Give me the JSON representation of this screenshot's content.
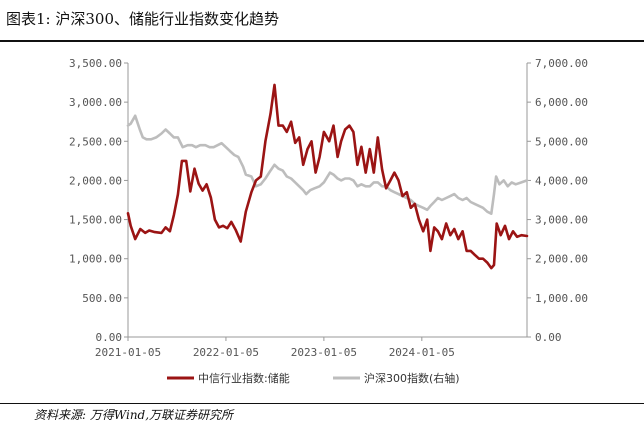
{
  "header": {
    "title": "图表1:  沪深300、储能行业指数变化趋势"
  },
  "footer": {
    "source": "资料来源:  万得Wind,万联证券研究所"
  },
  "colors": {
    "series_primary": "#9b1414",
    "series_secondary": "#bdbdbd",
    "axis": "#999999"
  },
  "chart_data": {
    "type": "line",
    "title": "",
    "x_tick_labels": [
      "2021-01-05",
      "2022-01-05",
      "2023-01-05",
      "2024-01-05"
    ],
    "x_ticks": [
      "2021-01-05",
      "2022-01-05",
      "2023-01-05",
      "2024-01-05"
    ],
    "xlim": [
      "2021-01-05",
      "2025-01-31"
    ],
    "y_left": {
      "lim": [
        0,
        3500
      ],
      "tick_labels": [
        "0.00",
        "500.00",
        "1,000.00",
        "1,500.00",
        "2,000.00",
        "2,500.00",
        "3,000.00",
        "3,500.00"
      ],
      "ticks": [
        0,
        500,
        1000,
        1500,
        2000,
        2500,
        3000,
        3500
      ]
    },
    "y_right": {
      "lim": [
        0,
        7000
      ],
      "tick_labels": [
        "0.00",
        "1,000.00",
        "2,000.00",
        "3,000.00",
        "4,000.00",
        "5,000.00",
        "6,000.00",
        "7,000.00"
      ],
      "ticks": [
        0,
        1000,
        2000,
        3000,
        4000,
        5000,
        6000,
        7000
      ]
    },
    "grid": false,
    "legend_position": "bottom",
    "series": [
      {
        "name": "中信行业指数:储能",
        "axis": "left",
        "x": [
          "2021-01-05",
          "2021-01-15",
          "2021-02-01",
          "2021-02-20",
          "2021-03-10",
          "2021-03-25",
          "2021-04-15",
          "2021-05-10",
          "2021-05-25",
          "2021-06-10",
          "2021-06-25",
          "2021-07-10",
          "2021-07-25",
          "2021-08-10",
          "2021-08-25",
          "2021-09-10",
          "2021-09-25",
          "2021-10-10",
          "2021-10-25",
          "2021-11-10",
          "2021-11-25",
          "2021-12-10",
          "2021-12-25",
          "2022-01-10",
          "2022-01-25",
          "2022-02-10",
          "2022-03-01",
          "2022-03-20",
          "2022-04-10",
          "2022-04-27",
          "2022-05-15",
          "2022-06-01",
          "2022-06-20",
          "2022-07-05",
          "2022-07-20",
          "2022-08-05",
          "2022-08-20",
          "2022-09-05",
          "2022-09-20",
          "2022-10-05",
          "2022-10-20",
          "2022-11-05",
          "2022-11-20",
          "2022-12-05",
          "2022-12-20",
          "2023-01-05",
          "2023-01-25",
          "2023-02-10",
          "2023-02-25",
          "2023-03-10",
          "2023-03-25",
          "2023-04-10",
          "2023-04-25",
          "2023-05-10",
          "2023-05-25",
          "2023-06-10",
          "2023-06-25",
          "2023-07-10",
          "2023-07-25",
          "2023-08-10",
          "2023-08-25",
          "2023-09-10",
          "2023-09-25",
          "2023-10-10",
          "2023-10-25",
          "2023-11-10",
          "2023-11-25",
          "2023-12-10",
          "2023-12-25",
          "2024-01-10",
          "2024-01-25",
          "2024-02-06",
          "2024-02-20",
          "2024-03-05",
          "2024-03-20",
          "2024-04-05",
          "2024-04-20",
          "2024-05-05",
          "2024-05-20",
          "2024-06-05",
          "2024-06-20",
          "2024-07-05",
          "2024-07-20",
          "2024-08-05",
          "2024-08-20",
          "2024-09-05",
          "2024-09-20",
          "2024-09-30",
          "2024-10-10",
          "2024-10-25",
          "2024-11-10",
          "2024-11-25",
          "2024-12-10",
          "2024-12-25",
          "2025-01-10",
          "2025-01-31"
        ],
        "values": [
          1580,
          1420,
          1250,
          1380,
          1330,
          1360,
          1340,
          1330,
          1400,
          1350,
          1560,
          1820,
          2250,
          2250,
          1860,
          2150,
          1960,
          1870,
          1950,
          1780,
          1500,
          1400,
          1420,
          1390,
          1470,
          1370,
          1220,
          1600,
          1850,
          2000,
          2050,
          2500,
          2850,
          3220,
          2700,
          2700,
          2620,
          2750,
          2480,
          2550,
          2200,
          2400,
          2500,
          2100,
          2300,
          2620,
          2500,
          2700,
          2300,
          2500,
          2650,
          2700,
          2620,
          2200,
          2430,
          2100,
          2400,
          2100,
          2550,
          2140,
          1900,
          2000,
          2100,
          2000,
          1800,
          1850,
          1650,
          1700,
          1500,
          1350,
          1500,
          1100,
          1400,
          1350,
          1250,
          1450,
          1300,
          1380,
          1250,
          1350,
          1100,
          1100,
          1050,
          1000,
          1000,
          950,
          880,
          920,
          1450,
          1300,
          1420,
          1250,
          1350,
          1280,
          1300,
          1290
        ],
        "color": "#9b1414"
      },
      {
        "name": "沪深300指数(右轴)",
        "axis": "right",
        "x": [
          "2021-01-05",
          "2021-01-15",
          "2021-02-01",
          "2021-02-18",
          "2021-03-01",
          "2021-03-15",
          "2021-04-01",
          "2021-04-20",
          "2021-05-10",
          "2021-05-25",
          "2021-06-10",
          "2021-06-25",
          "2021-07-10",
          "2021-07-28",
          "2021-08-15",
          "2021-09-01",
          "2021-09-15",
          "2021-10-01",
          "2021-10-20",
          "2021-11-05",
          "2021-11-20",
          "2021-12-05",
          "2021-12-20",
          "2022-01-05",
          "2022-01-20",
          "2022-02-05",
          "2022-02-20",
          "2022-03-10",
          "2022-03-20",
          "2022-04-10",
          "2022-04-27",
          "2022-05-15",
          "2022-06-01",
          "2022-06-20",
          "2022-07-05",
          "2022-07-20",
          "2022-08-05",
          "2022-08-20",
          "2022-09-05",
          "2022-09-20",
          "2022-10-05",
          "2022-10-20",
          "2022-10-31",
          "2022-11-15",
          "2022-12-01",
          "2022-12-20",
          "2023-01-05",
          "2023-01-28",
          "2023-02-10",
          "2023-02-25",
          "2023-03-10",
          "2023-03-25",
          "2023-04-10",
          "2023-04-25",
          "2023-05-10",
          "2023-05-25",
          "2023-06-10",
          "2023-06-25",
          "2023-07-10",
          "2023-07-25",
          "2023-08-10",
          "2023-08-25",
          "2023-09-10",
          "2023-09-25",
          "2023-10-10",
          "2023-10-25",
          "2023-11-10",
          "2023-11-25",
          "2023-12-10",
          "2023-12-25",
          "2024-01-10",
          "2024-01-25",
          "2024-02-06",
          "2024-02-20",
          "2024-03-05",
          "2024-03-20",
          "2024-04-05",
          "2024-04-20",
          "2024-05-05",
          "2024-05-20",
          "2024-06-05",
          "2024-06-20",
          "2024-07-05",
          "2024-07-20",
          "2024-08-05",
          "2024-08-20",
          "2024-09-05",
          "2024-09-20",
          "2024-09-30",
          "2024-10-08",
          "2024-10-20",
          "2024-11-05",
          "2024-11-20",
          "2024-12-05",
          "2024-12-20",
          "2025-01-10",
          "2025-01-31"
        ],
        "values": [
          5400,
          5450,
          5650,
          5300,
          5100,
          5050,
          5050,
          5100,
          5200,
          5300,
          5200,
          5100,
          5100,
          4850,
          4900,
          4900,
          4850,
          4900,
          4900,
          4850,
          4850,
          4900,
          4950,
          4850,
          4750,
          4650,
          4600,
          4350,
          4150,
          4100,
          3850,
          3900,
          4050,
          4250,
          4400,
          4300,
          4250,
          4100,
          4050,
          3950,
          3850,
          3750,
          3650,
          3750,
          3800,
          3850,
          3950,
          4200,
          4150,
          4050,
          4000,
          4050,
          4050,
          4000,
          3850,
          3900,
          3850,
          3850,
          3950,
          3950,
          3850,
          3850,
          3750,
          3700,
          3650,
          3600,
          3550,
          3500,
          3400,
          3350,
          3300,
          3250,
          3350,
          3450,
          3550,
          3500,
          3550,
          3600,
          3650,
          3550,
          3500,
          3550,
          3450,
          3400,
          3350,
          3300,
          3200,
          3150,
          3650,
          4100,
          3900,
          4000,
          3850,
          3950,
          3900,
          3950,
          4000
        ],
        "color": "#bdbdbd"
      }
    ]
  }
}
